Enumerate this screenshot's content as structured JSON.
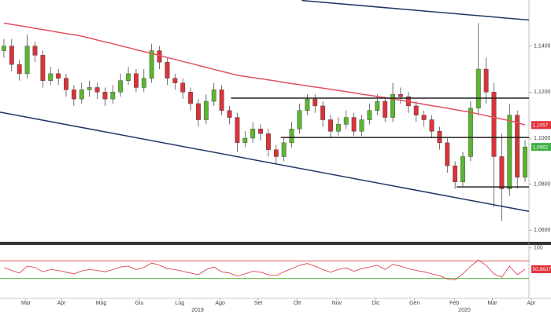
{
  "chart_data": [
    {
      "type": "candlestick",
      "categories": [
        null,
        null,
        null,
        null,
        null,
        null,
        null,
        null,
        null,
        null,
        null,
        null,
        null,
        null,
        null,
        null,
        null,
        null,
        null,
        null,
        null,
        null,
        null,
        null,
        null,
        null,
        null,
        null,
        null,
        null,
        null,
        null,
        null,
        null,
        null,
        null,
        null,
        null,
        null,
        null,
        null,
        null,
        null,
        null,
        null,
        null,
        null,
        null,
        null,
        null,
        null,
        null,
        null,
        null,
        null,
        null,
        null,
        null,
        null,
        null,
        null,
        null,
        null,
        null,
        null,
        null,
        null,
        null
      ],
      "open": [
        1.138,
        1.14,
        1.132,
        1.128,
        1.14,
        1.136,
        1.125,
        1.128,
        1.126,
        1.121,
        1.117,
        1.121,
        1.122,
        1.12,
        1.117,
        1.12,
        1.125,
        1.128,
        1.122,
        1.126,
        1.138,
        1.133,
        1.126,
        1.124,
        1.12,
        1.115,
        1.108,
        1.116,
        1.121,
        1.112,
        1.109,
        1.098,
        1.1,
        1.104,
        1.102,
        1.095,
        1.092,
        1.098,
        1.104,
        1.112,
        1.117,
        1.114,
        1.108,
        1.103,
        1.106,
        1.109,
        1.103,
        1.108,
        1.112,
        1.116,
        1.109,
        1.119,
        1.118,
        1.114,
        1.11,
        1.108,
        1.103,
        1.098,
        1.088,
        1.081,
        1.092,
        1.113,
        1.13,
        1.12,
        1.092,
        1.078,
        1.11,
        1.083
      ],
      "high": [
        1.143,
        1.143,
        1.134,
        1.145,
        1.142,
        1.138,
        1.131,
        1.13,
        1.128,
        1.123,
        1.124,
        1.125,
        1.124,
        1.122,
        1.123,
        1.128,
        1.131,
        1.13,
        1.13,
        1.141,
        1.14,
        1.135,
        1.128,
        1.126,
        1.122,
        1.117,
        1.119,
        1.124,
        1.123,
        1.114,
        1.111,
        1.103,
        1.107,
        1.106,
        1.104,
        1.097,
        1.1,
        1.107,
        1.115,
        1.119,
        1.119,
        1.116,
        1.11,
        1.109,
        1.112,
        1.111,
        1.11,
        1.115,
        1.119,
        1.118,
        1.124,
        1.122,
        1.12,
        1.116,
        1.112,
        1.11,
        1.105,
        1.1,
        1.09,
        1.094,
        1.116,
        1.15,
        1.135,
        1.124,
        1.102,
        1.115,
        1.112,
        1.099
      ],
      "low": [
        1.135,
        1.129,
        1.125,
        1.126,
        1.133,
        1.122,
        1.123,
        1.123,
        1.118,
        1.114,
        1.115,
        1.118,
        1.117,
        1.114,
        1.115,
        1.118,
        1.123,
        1.12,
        1.12,
        1.124,
        1.13,
        1.123,
        1.121,
        1.117,
        1.112,
        1.105,
        1.106,
        1.114,
        1.11,
        1.106,
        1.094,
        1.096,
        1.098,
        1.099,
        1.092,
        1.089,
        1.09,
        1.096,
        1.102,
        1.11,
        1.111,
        1.105,
        1.1,
        1.101,
        1.104,
        1.101,
        1.101,
        1.106,
        1.11,
        1.107,
        1.107,
        1.115,
        1.111,
        1.107,
        1.105,
        1.1,
        1.095,
        1.085,
        1.078,
        1.079,
        1.09,
        1.11,
        1.115,
        1.07,
        1.064,
        1.075,
        1.078,
        1.081
      ],
      "close": [
        1.14,
        1.132,
        1.128,
        1.14,
        1.136,
        1.125,
        1.128,
        1.126,
        1.121,
        1.117,
        1.121,
        1.122,
        1.12,
        1.117,
        1.12,
        1.125,
        1.128,
        1.122,
        1.126,
        1.138,
        1.133,
        1.126,
        1.124,
        1.12,
        1.115,
        1.108,
        1.116,
        1.121,
        1.112,
        1.109,
        1.098,
        1.1,
        1.104,
        1.102,
        1.095,
        1.092,
        1.098,
        1.104,
        1.112,
        1.117,
        1.114,
        1.108,
        1.103,
        1.106,
        1.109,
        1.103,
        1.108,
        1.112,
        1.116,
        1.109,
        1.119,
        1.118,
        1.114,
        1.11,
        1.108,
        1.103,
        1.098,
        1.088,
        1.081,
        1.092,
        1.113,
        1.13,
        1.12,
        1.092,
        1.078,
        1.11,
        1.083,
        1.0962
      ],
      "up_color": "#5cb531",
      "down_color": "#d9343b",
      "series": [
        {
          "color": "#e0525e",
          "values": [
            1.15,
            1.1494,
            1.1489,
            1.1483,
            1.1477,
            1.1471,
            1.1466,
            1.146,
            1.1454,
            1.1449,
            1.1443,
            1.1435,
            1.1426,
            1.1418,
            1.141,
            1.1401,
            1.1393,
            1.1384,
            1.1376,
            1.1368,
            1.1359,
            1.135,
            1.1342,
            1.1333,
            1.1325,
            1.1316,
            1.1307,
            1.1299,
            1.129,
            1.1282,
            1.1273,
            1.1268,
            1.1263,
            1.1258,
            1.1253,
            1.1248,
            1.1242,
            1.1237,
            1.1232,
            1.1227,
            1.1222,
            1.1217,
            1.1212,
            1.1207,
            1.1202,
            1.1197,
            1.1191,
            1.1186,
            1.1181,
            1.1176,
            1.1171,
            1.1165,
            1.1159,
            1.1153,
            1.1147,
            1.1141,
            1.1136,
            1.113,
            1.1124,
            1.1118,
            1.1112,
            1.1105,
            1.1098,
            1.109,
            1.1083,
            1.1076,
            1.1068,
            1.1057
          ]
        }
      ],
      "lines": [
        {
          "x": [
            38.3,
            67.5
          ],
          "y": [
            1.1598,
            1.1513
          ],
          "color": "#1f3864"
        },
        {
          "x": [
            -0.5,
            67.5
          ],
          "y": [
            1.1113,
            1.0682
          ],
          "color": "#1f3864"
        },
        {
          "x": [
            29.2,
            67.5
          ],
          "y": [
            1.1174,
            1.1174
          ],
          "color": "#222222"
        },
        {
          "x": [
            35.6,
            67.5
          ],
          "y": [
            1.1003,
            1.1003
          ],
          "color": "#222222"
        },
        {
          "x": [
            58.2,
            67.5
          ],
          "y": [
            1.0788,
            1.0788
          ],
          "color": "#222222"
        }
      ],
      "badges": [
        {
          "value": 1.1057,
          "label": "1,1057",
          "color": "#e0303a"
        },
        {
          "value": 1.0962,
          "label": "1,0962",
          "color": "#3cb043"
        }
      ],
      "xlim": [
        -0.5,
        67.5
      ],
      "ylim": [
        1.055,
        1.16
      ],
      "yticks": [
        {
          "value": 1.14,
          "label": "1,1400"
        },
        {
          "value": 1.12,
          "label": "1,1200"
        },
        {
          "value": 1.1,
          "label": "1,1000"
        },
        {
          "value": 1.08,
          "label": "1,0800"
        },
        {
          "value": 1.06,
          "label": "1,0600"
        }
      ]
    },
    {
      "type": "line",
      "series": [
        {
          "color": "#d93040",
          "values": [
            55,
            48,
            42,
            58,
            55,
            45,
            50,
            48,
            44,
            40,
            47,
            50,
            48,
            45,
            50,
            56,
            58,
            50,
            55,
            65,
            60,
            52,
            50,
            46,
            42,
            38,
            50,
            56,
            45,
            42,
            35,
            40,
            46,
            44,
            38,
            36,
            45,
            52,
            60,
            64,
            58,
            50,
            44,
            50,
            54,
            46,
            52,
            56,
            60,
            50,
            62,
            58,
            52,
            48,
            45,
            40,
            36,
            28,
            26,
            40,
            58,
            72,
            60,
            40,
            32,
            58,
            38,
            50.8637
          ]
        }
      ],
      "levels": [
        {
          "value": 70,
          "color": "#e05a5a"
        },
        {
          "value": 30,
          "color": "#55c040"
        }
      ],
      "badges": [
        {
          "value": 50.8637,
          "label": "50,8637",
          "color": "#e0303a"
        }
      ],
      "xlim": [
        -0.5,
        67.5
      ],
      "ylim": [
        -20,
        107
      ],
      "yticks": [
        100
      ],
      "xticks": [
        {
          "value": 2.84,
          "label": "Mar"
        },
        {
          "value": 7.4,
          "label": "Apr"
        },
        {
          "value": 12.5,
          "label": "Mag"
        },
        {
          "value": 17.4,
          "label": "Giu"
        },
        {
          "value": 22.6,
          "label": "Lug"
        },
        {
          "value": 27.8,
          "label": "Ago"
        },
        {
          "value": 32.7,
          "label": "Set"
        },
        {
          "value": 37.7,
          "label": "Ott"
        },
        {
          "value": 42.8,
          "label": "Nov"
        },
        {
          "value": 47.8,
          "label": "Dic"
        },
        {
          "value": 52.8,
          "label": "Gen"
        },
        {
          "value": 57.9,
          "label": "Feb"
        },
        {
          "value": 62.8,
          "label": "Mar"
        },
        {
          "value": 67.8,
          "label": "Apr"
        }
      ],
      "year_labels": [
        {
          "value": 24.9,
          "label": "2019"
        },
        {
          "value": 59.2,
          "label": "2020"
        }
      ]
    }
  ]
}
